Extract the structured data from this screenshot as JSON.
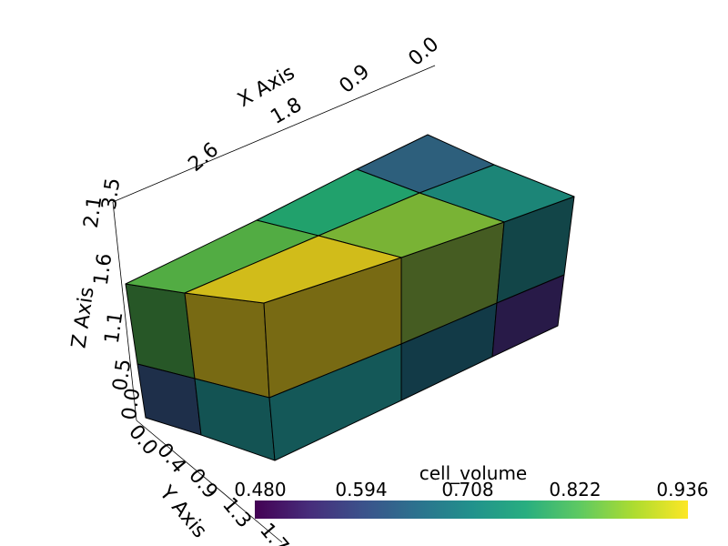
{
  "chart_data": {
    "type": "3d-mesh",
    "scalar_name": "cell_volume",
    "colormap": "viridis",
    "color_range": [
      0.48,
      0.936
    ],
    "colorbar": {
      "title": "cell_volume",
      "ticks": [
        "0.480",
        "0.594",
        "0.708",
        "0.822",
        "0.936"
      ]
    },
    "axes": {
      "x": {
        "title": "X Axis",
        "ticks": [
          "2.6",
          "1.8",
          "0.9",
          "0.0"
        ]
      },
      "y": {
        "title": "Y Axis",
        "ticks": [
          "0.0",
          "0.4",
          "0.9",
          "1.3",
          "1.7"
        ]
      },
      "z": {
        "title": "Z Axis",
        "ticks": [
          "0.0",
          "0.5",
          "1.1",
          "1.6",
          "2.1",
          "3.5"
        ]
      }
    },
    "grid": false
  }
}
